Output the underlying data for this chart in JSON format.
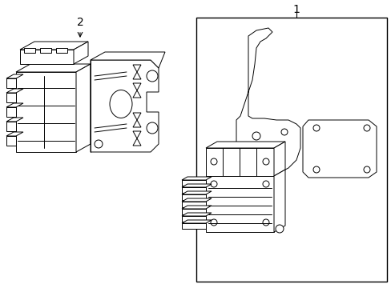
{
  "background_color": "#ffffff",
  "line_color": "#000000",
  "label1": "1",
  "label2": "2",
  "figsize": [
    4.89,
    3.6
  ],
  "dpi": 100,
  "lw": 0.7
}
